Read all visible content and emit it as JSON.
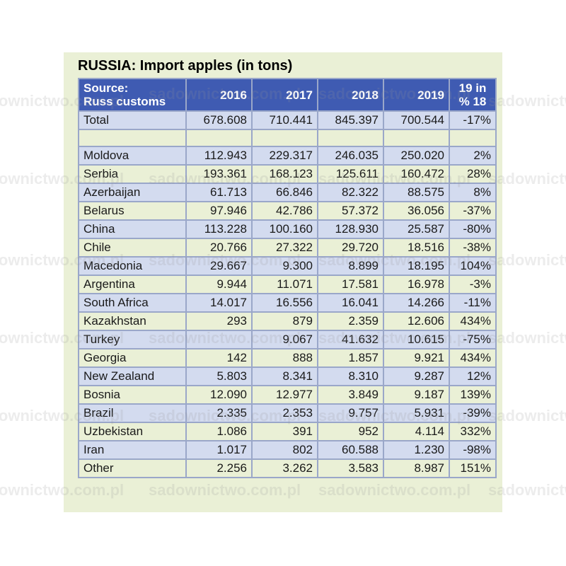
{
  "chart_data": {
    "type": "table",
    "title": "RUSSIA: Import apples (in tons)",
    "columns": [
      "Source:\nRuss customs",
      "2016",
      "2017",
      "2018",
      "2019",
      "19 in\n% 18"
    ],
    "header": {
      "source_line1": "Source:",
      "source_line2": "Russ customs",
      "y2016": "2016",
      "y2017": "2017",
      "y2018": "2018",
      "y2019": "2019",
      "pct_line1": "19 in",
      "pct_line2": "% 18"
    },
    "rows": [
      [
        "Total",
        "678.608",
        "710.441",
        "845.397",
        "700.544",
        "-17%"
      ],
      [
        "",
        "",
        "",
        "",
        "",
        ""
      ],
      [
        "Moldova",
        "112.943",
        "229.317",
        "246.035",
        "250.020",
        "2%"
      ],
      [
        "Serbia",
        "193.361",
        "168.123",
        "125.611",
        "160.472",
        "28%"
      ],
      [
        "Azerbaijan",
        "61.713",
        "66.846",
        "82.322",
        "88.575",
        "8%"
      ],
      [
        "Belarus",
        "97.946",
        "42.786",
        "57.372",
        "36.056",
        "-37%"
      ],
      [
        "China",
        "113.228",
        "100.160",
        "128.930",
        "25.587",
        "-80%"
      ],
      [
        "Chile",
        "20.766",
        "27.322",
        "29.720",
        "18.516",
        "-38%"
      ],
      [
        "Macedonia",
        "29.667",
        "9.300",
        "8.899",
        "18.195",
        "104%"
      ],
      [
        "Argentina",
        "9.944",
        "11.071",
        "17.581",
        "16.978",
        "-3%"
      ],
      [
        "South Africa",
        "14.017",
        "16.556",
        "16.041",
        "14.266",
        "-11%"
      ],
      [
        "Kazakhstan",
        "293",
        "879",
        "2.359",
        "12.606",
        "434%"
      ],
      [
        "Turkey",
        "",
        "9.067",
        "41.632",
        "10.615",
        "-75%"
      ],
      [
        "Georgia",
        "142",
        "888",
        "1.857",
        "9.921",
        "434%"
      ],
      [
        "New Zealand",
        "5.803",
        "8.341",
        "8.310",
        "9.287",
        "12%"
      ],
      [
        "Bosnia",
        "12.090",
        "12.977",
        "3.849",
        "9.187",
        "139%"
      ],
      [
        "Brazil",
        "2.335",
        "2.353",
        "9.757",
        "5.931",
        "-39%"
      ],
      [
        "Uzbekistan",
        "1.086",
        "391",
        "952",
        "4.114",
        "332%"
      ],
      [
        "Iran",
        "1.017",
        "802",
        "60.588",
        "1.230",
        "-98%"
      ],
      [
        "Other",
        "2.256",
        "3.262",
        "3.583",
        "8.987",
        "151%"
      ]
    ]
  },
  "colors": {
    "header_bg": "#3f5bb2",
    "row_blue": "#d3dbef",
    "row_green": "#eaf0d6",
    "border": "#9aa7c9"
  },
  "watermark_text": "sadownictwo.com.pl"
}
